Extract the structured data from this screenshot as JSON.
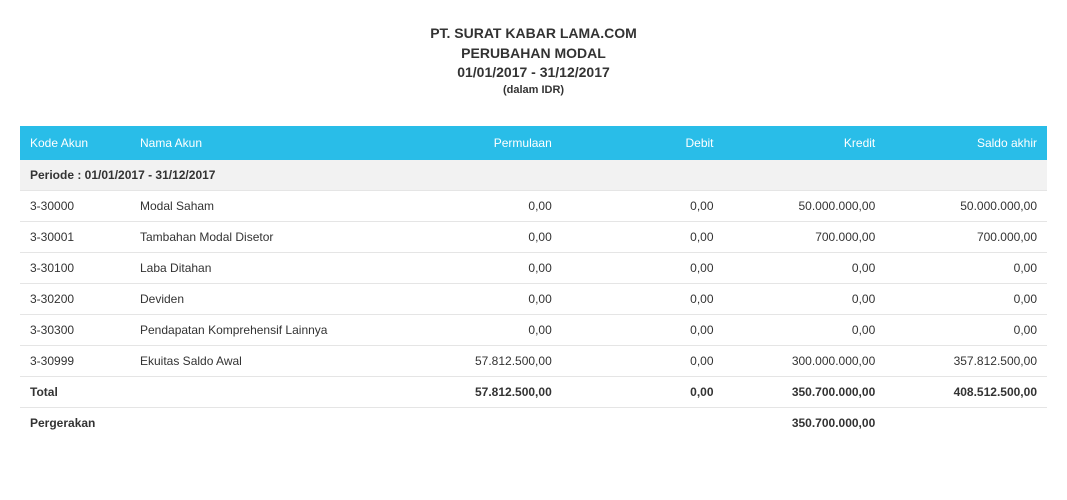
{
  "header": {
    "company": "PT. SURAT KABAR LAMA.COM",
    "title": "PERUBAHAN MODAL",
    "period": "01/01/2017 - 31/12/2017",
    "currency_note": "(dalam IDR)"
  },
  "columns": {
    "code": "Kode Akun",
    "name": "Nama Akun",
    "opening": "Permulaan",
    "debit": "Debit",
    "credit": "Kredit",
    "ending": "Saldo akhir"
  },
  "period_label": "Periode : 01/01/2017 - 31/12/2017",
  "rows": [
    {
      "code": "3-30000",
      "name": "Modal Saham",
      "opening": "0,00",
      "debit": "0,00",
      "credit": "50.000.000,00",
      "ending": "50.000.000,00"
    },
    {
      "code": "3-30001",
      "name": "Tambahan Modal Disetor",
      "opening": "0,00",
      "debit": "0,00",
      "credit": "700.000,00",
      "ending": "700.000,00"
    },
    {
      "code": "3-30100",
      "name": "Laba Ditahan",
      "opening": "0,00",
      "debit": "0,00",
      "credit": "0,00",
      "ending": "0,00"
    },
    {
      "code": "3-30200",
      "name": "Deviden",
      "opening": "0,00",
      "debit": "0,00",
      "credit": "0,00",
      "ending": "0,00"
    },
    {
      "code": "3-30300",
      "name": "Pendapatan Komprehensif Lainnya",
      "opening": "0,00",
      "debit": "0,00",
      "credit": "0,00",
      "ending": "0,00"
    },
    {
      "code": "3-30999",
      "name": "Ekuitas Saldo Awal",
      "opening": "57.812.500,00",
      "debit": "0,00",
      "credit": "300.000.000,00",
      "ending": "357.812.500,00"
    }
  ],
  "total": {
    "label": "Total",
    "opening": "57.812.500,00",
    "debit": "0,00",
    "credit": "350.700.000,00",
    "ending": "408.512.500,00"
  },
  "movement": {
    "label": "Pergerakan",
    "value": "350.700.000,00"
  },
  "style": {
    "header_bg": "#29bde8",
    "header_fg": "#ffffff",
    "row_border": "#e5e5e5",
    "period_bg": "#f2f2f2",
    "body_bg": "#ffffff",
    "text_color": "#333333",
    "font_family": "Arial",
    "font_size_body": 12,
    "font_size_header": 14
  }
}
